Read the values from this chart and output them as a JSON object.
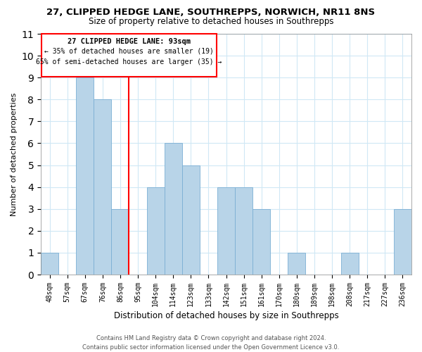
{
  "title": "27, CLIPPED HEDGE LANE, SOUTHREPPS, NORWICH, NR11 8NS",
  "subtitle": "Size of property relative to detached houses in Southrepps",
  "xlabel": "Distribution of detached houses by size in Southrepps",
  "ylabel": "Number of detached properties",
  "categories": [
    "48sqm",
    "57sqm",
    "67sqm",
    "76sqm",
    "86sqm",
    "95sqm",
    "104sqm",
    "114sqm",
    "123sqm",
    "133sqm",
    "142sqm",
    "151sqm",
    "161sqm",
    "170sqm",
    "180sqm",
    "189sqm",
    "198sqm",
    "208sqm",
    "217sqm",
    "227sqm",
    "236sqm"
  ],
  "values": [
    1,
    0,
    9,
    8,
    3,
    0,
    4,
    6,
    5,
    0,
    4,
    4,
    3,
    0,
    1,
    0,
    0,
    1,
    0,
    0,
    3
  ],
  "bar_color": "#b8d4e8",
  "bar_edge_color": "#7bafd4",
  "red_line_x": 5,
  "ylim": [
    0,
    11
  ],
  "yticks": [
    0,
    1,
    2,
    3,
    4,
    5,
    6,
    7,
    8,
    9,
    10,
    11
  ],
  "annotation_title": "27 CLIPPED HEDGE LANE: 93sqm",
  "annotation_line1": "← 35% of detached houses are smaller (19)",
  "annotation_line2": "65% of semi-detached houses are larger (35) →",
  "footnote1": "Contains HM Land Registry data © Crown copyright and database right 2024.",
  "footnote2": "Contains public sector information licensed under the Open Government Licence v3.0.",
  "title_fontsize": 9.5,
  "subtitle_fontsize": 8.5,
  "grid_color": "#d0e8f5",
  "footnote_fontsize": 6.0
}
